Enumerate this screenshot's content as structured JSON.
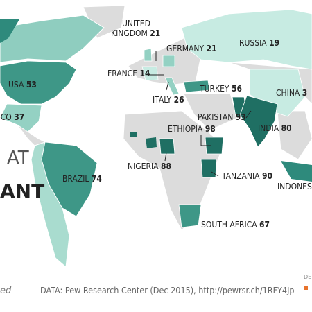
{
  "title_fragments": [
    "AT",
    "ANT"
  ],
  "labels": [
    {
      "lines": [
        "UNITED",
        "KINGDOM"
      ],
      "value": 21
    },
    {
      "lines": [
        "GERMANY"
      ],
      "value": 21
    },
    {
      "lines": [
        "RUSSIA"
      ],
      "value": 19
    },
    {
      "lines": [
        "FRANCE"
      ],
      "value": 14
    },
    {
      "lines": [
        "USA"
      ],
      "value": 53
    },
    {
      "lines": [
        "ITALY"
      ],
      "value": 26
    },
    {
      "lines": [
        "TURKEY"
      ],
      "value": 56
    },
    {
      "lines": [
        "CHINA"
      ],
      "value": 3
    },
    {
      "lines": [
        "PAKISTAN"
      ],
      "value": 93
    },
    {
      "lines": [
        "INDIA"
      ],
      "value": 80
    },
    {
      "lines": [
        "MEXICO"
      ],
      "value": 37
    },
    {
      "lines": [
        "ETHIOPIA"
      ],
      "value": 98
    },
    {
      "lines": [
        "NIGERIA"
      ],
      "value": 88
    },
    {
      "lines": [
        "TANZANIA"
      ],
      "value": 90
    },
    {
      "lines": [
        "BRAZIL"
      ],
      "value": 74
    },
    {
      "lines": [
        "INDONESIA"
      ]
    },
    {
      "lines": [
        "SOUTH AFRICA"
      ],
      "value": 67
    }
  ],
  "footer": {
    "note": "ed",
    "source": "DATA: Pew Research Center (Dec 2015), http://pewrsr.ch/1RFY4Jp",
    "legend_fragment": "DE"
  }
}
